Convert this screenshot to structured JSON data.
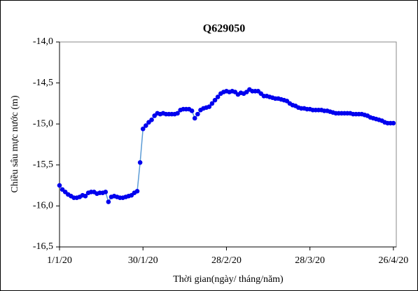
{
  "chart_data": {
    "type": "line",
    "title": "Q629050",
    "x_label": "Thời gian(ngày/ tháng/năm)",
    "y_label": "Chiều sâu mực nước (m)",
    "x": [
      "2020-01-01",
      "2020-01-02",
      "2020-01-03",
      "2020-01-04",
      "2020-01-05",
      "2020-01-06",
      "2020-01-07",
      "2020-01-08",
      "2020-01-09",
      "2020-01-10",
      "2020-01-11",
      "2020-01-12",
      "2020-01-13",
      "2020-01-14",
      "2020-01-15",
      "2020-01-16",
      "2020-01-17",
      "2020-01-18",
      "2020-01-19",
      "2020-01-20",
      "2020-01-21",
      "2020-01-22",
      "2020-01-23",
      "2020-01-24",
      "2020-01-25",
      "2020-01-26",
      "2020-01-27",
      "2020-01-28",
      "2020-01-29",
      "2020-01-30",
      "2020-01-31",
      "2020-02-01",
      "2020-02-02",
      "2020-02-03",
      "2020-02-04",
      "2020-02-05",
      "2020-02-06",
      "2020-02-07",
      "2020-02-08",
      "2020-02-09",
      "2020-02-10",
      "2020-02-11",
      "2020-02-12",
      "2020-02-13",
      "2020-02-14",
      "2020-02-15",
      "2020-02-16",
      "2020-02-17",
      "2020-02-18",
      "2020-02-19",
      "2020-02-20",
      "2020-02-21",
      "2020-02-22",
      "2020-02-23",
      "2020-02-24",
      "2020-02-25",
      "2020-02-26",
      "2020-02-27",
      "2020-02-28",
      "2020-02-29",
      "2020-03-01",
      "2020-03-02",
      "2020-03-03",
      "2020-03-04",
      "2020-03-05",
      "2020-03-06",
      "2020-03-07",
      "2020-03-08",
      "2020-03-09",
      "2020-03-10",
      "2020-03-11",
      "2020-03-12",
      "2020-03-13",
      "2020-03-14",
      "2020-03-15",
      "2020-03-16",
      "2020-03-17",
      "2020-03-18",
      "2020-03-19",
      "2020-03-20",
      "2020-03-21",
      "2020-03-22",
      "2020-03-23",
      "2020-03-24",
      "2020-03-25",
      "2020-03-26",
      "2020-03-27",
      "2020-03-28",
      "2020-03-29",
      "2020-03-30",
      "2020-03-31",
      "2020-04-01",
      "2020-04-02",
      "2020-04-03",
      "2020-04-04",
      "2020-04-05",
      "2020-04-06",
      "2020-04-07",
      "2020-04-08",
      "2020-04-09",
      "2020-04-10",
      "2020-04-11",
      "2020-04-12",
      "2020-04-13",
      "2020-04-14",
      "2020-04-15",
      "2020-04-16",
      "2020-04-17",
      "2020-04-18",
      "2020-04-19",
      "2020-04-20",
      "2020-04-21",
      "2020-04-22",
      "2020-04-23",
      "2020-04-24",
      "2020-04-25",
      "2020-04-26"
    ],
    "series": [
      {
        "color": "#0000ee",
        "line_color": "#5b9bd5",
        "values": [
          -15.75,
          -15.8,
          -15.83,
          -15.86,
          -15.88,
          -15.9,
          -15.9,
          -15.89,
          -15.87,
          -15.88,
          -15.84,
          -15.83,
          -15.83,
          -15.85,
          -15.84,
          -15.84,
          -15.83,
          -15.95,
          -15.89,
          -15.88,
          -15.89,
          -15.9,
          -15.9,
          -15.89,
          -15.88,
          -15.87,
          -15.84,
          -15.82,
          -15.47,
          -15.06,
          -15.02,
          -14.98,
          -14.95,
          -14.9,
          -14.87,
          -14.88,
          -14.87,
          -14.88,
          -14.88,
          -14.88,
          -14.88,
          -14.87,
          -14.83,
          -14.82,
          -14.82,
          -14.82,
          -14.84,
          -14.93,
          -14.88,
          -14.83,
          -14.81,
          -14.8,
          -14.79,
          -14.75,
          -14.71,
          -14.67,
          -14.63,
          -14.61,
          -14.6,
          -14.61,
          -14.6,
          -14.61,
          -14.64,
          -14.62,
          -14.63,
          -14.61,
          -14.58,
          -14.6,
          -14.6,
          -14.6,
          -14.63,
          -14.66,
          -14.66,
          -14.67,
          -14.68,
          -14.69,
          -14.69,
          -14.7,
          -14.71,
          -14.72,
          -14.75,
          -14.77,
          -14.78,
          -14.8,
          -14.81,
          -14.81,
          -14.82,
          -14.82,
          -14.83,
          -14.83,
          -14.83,
          -14.83,
          -14.84,
          -14.84,
          -14.85,
          -14.86,
          -14.87,
          -14.87,
          -14.87,
          -14.87,
          -14.87,
          -14.87,
          -14.88,
          -14.88,
          -14.88,
          -14.88,
          -14.89,
          -14.9,
          -14.92,
          -14.93,
          -14.94,
          -14.95,
          -14.96,
          -14.98,
          -14.99,
          -14.99,
          -14.99
        ]
      }
    ],
    "xlim": [
      "2020-01-01",
      "2020-04-27"
    ],
    "xticks": [
      {
        "value": "2020-01-01",
        "label": "1/1/20"
      },
      {
        "value": "2020-01-30",
        "label": "30/1/20"
      },
      {
        "value": "2020-02-28",
        "label": "28/2/20"
      },
      {
        "value": "2020-03-28",
        "label": "28/3/20"
      },
      {
        "value": "2020-04-26",
        "label": "26/4/20"
      }
    ],
    "ylim": [
      -16.5,
      -14
    ],
    "yticks": [
      {
        "value": -16.5,
        "label": "-16,5"
      },
      {
        "value": -16,
        "label": "-16,0"
      },
      {
        "value": -15.5,
        "label": "-15,5"
      },
      {
        "value": -15,
        "label": "-15,0"
      },
      {
        "value": -14.5,
        "label": "-14,5"
      },
      {
        "value": -14,
        "label": "-14,0"
      }
    ],
    "grid": false
  }
}
